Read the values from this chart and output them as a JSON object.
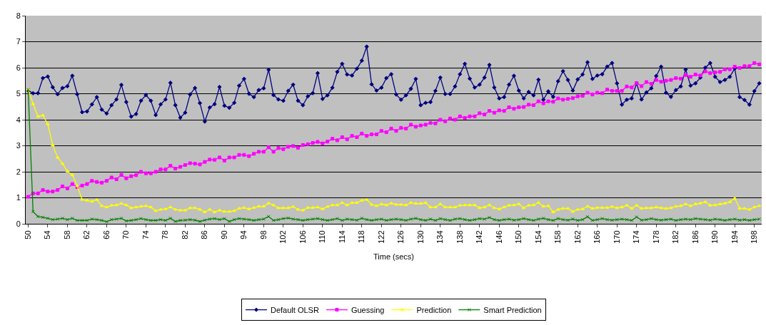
{
  "chart_data": {
    "type": "line",
    "xlabel": "Time (secs)",
    "ylim": [
      0,
      8
    ],
    "yticks": [
      0,
      1,
      2,
      3,
      4,
      5,
      6,
      7,
      8
    ],
    "grid": "y",
    "legend": "bottom",
    "categories": [
      "50",
      null,
      null,
      null,
      "54",
      null,
      null,
      null,
      "58",
      null,
      null,
      null,
      "62",
      null,
      null,
      null,
      "66",
      null,
      null,
      null,
      "70",
      null,
      null,
      null,
      "74",
      null,
      null,
      null,
      "78",
      null,
      null,
      null,
      "82",
      null,
      null,
      null,
      "86",
      null,
      null,
      null,
      "90",
      null,
      null,
      null,
      "94",
      null,
      null,
      null,
      "98",
      null,
      null,
      null,
      "102",
      null,
      null,
      null,
      "106",
      null,
      null,
      null,
      "110",
      null,
      null,
      null,
      "114",
      null,
      null,
      null,
      "118",
      null,
      null,
      null,
      "122",
      null,
      null,
      null,
      "126",
      null,
      null,
      null,
      "130",
      null,
      null,
      null,
      "134",
      null,
      null,
      null,
      "138",
      null,
      null,
      null,
      "142",
      null,
      null,
      null,
      "146",
      null,
      null,
      null,
      "150",
      null,
      null,
      null,
      "154",
      null,
      null,
      null,
      "158",
      null,
      null,
      null,
      "162",
      null,
      null,
      null,
      "166",
      null,
      null,
      null,
      "170",
      null,
      null,
      null,
      "174",
      null,
      null,
      null,
      "178",
      null,
      null,
      null,
      "182",
      null,
      null,
      null,
      "186",
      null,
      null,
      null,
      "190",
      null,
      null,
      null,
      "194",
      null,
      null,
      null,
      "198",
      null
    ],
    "series": [
      {
        "name": "Default OLSR",
        "color": "#000080",
        "marker": "diamond",
        "values": [
          5.12,
          5.02,
          5.02,
          5.6,
          5.66,
          5.25,
          4.98,
          5.22,
          5.29,
          5.69,
          4.98,
          4.29,
          4.32,
          4.59,
          4.87,
          4.39,
          4.24,
          4.56,
          4.78,
          5.34,
          4.68,
          4.12,
          4.22,
          4.73,
          4.95,
          4.73,
          4.18,
          4.59,
          4.78,
          5.42,
          4.56,
          4.08,
          4.27,
          4.97,
          5.22,
          4.64,
          3.93,
          4.47,
          4.6,
          5.26,
          4.54,
          4.46,
          4.65,
          5.31,
          5.57,
          5.0,
          4.87,
          5.14,
          5.21,
          5.92,
          4.95,
          4.78,
          4.73,
          5.11,
          5.35,
          4.73,
          4.56,
          4.9,
          5.02,
          5.79,
          4.8,
          4.94,
          5.23,
          5.84,
          6.15,
          5.74,
          5.7,
          5.96,
          6.27,
          6.81,
          5.36,
          5.12,
          5.23,
          5.6,
          5.75,
          4.97,
          4.77,
          4.94,
          5.19,
          5.57,
          4.56,
          4.65,
          4.68,
          5.11,
          5.62,
          4.99,
          4.99,
          5.28,
          5.75,
          6.15,
          5.58,
          5.24,
          5.35,
          5.62,
          6.11,
          5.24,
          4.82,
          4.87,
          5.35,
          5.69,
          5.12,
          4.82,
          5.07,
          4.94,
          5.54,
          4.77,
          5.09,
          4.88,
          5.48,
          5.87,
          5.53,
          5.12,
          5.55,
          5.74,
          6.21,
          5.57,
          5.7,
          5.75,
          6.04,
          6.18,
          5.4,
          4.58,
          4.77,
          4.82,
          5.4,
          4.78,
          5.05,
          5.21,
          5.68,
          6.04,
          5.04,
          4.88,
          5.14,
          5.28,
          5.93,
          5.31,
          5.4,
          5.62,
          6.0,
          6.18,
          5.65,
          5.45,
          5.53,
          5.65,
          5.97,
          4.87,
          4.76,
          4.58,
          5.1,
          5.4
        ]
      },
      {
        "name": "Guessing",
        "color": "#ff00ff",
        "marker": "square",
        "values": [
          1.04,
          1.17,
          1.17,
          1.3,
          1.24,
          1.24,
          1.3,
          1.44,
          1.36,
          1.53,
          1.41,
          1.47,
          1.53,
          1.65,
          1.61,
          1.58,
          1.65,
          1.78,
          1.71,
          1.88,
          1.75,
          1.83,
          1.87,
          2.0,
          1.94,
          1.94,
          2.0,
          2.09,
          2.09,
          2.23,
          2.12,
          2.19,
          2.26,
          2.33,
          2.31,
          2.28,
          2.38,
          2.47,
          2.46,
          2.55,
          2.43,
          2.55,
          2.55,
          2.65,
          2.65,
          2.6,
          2.69,
          2.77,
          2.77,
          2.94,
          2.77,
          2.91,
          2.87,
          2.96,
          2.99,
          2.92,
          3.03,
          3.06,
          3.11,
          3.15,
          3.09,
          3.16,
          3.27,
          3.21,
          3.33,
          3.25,
          3.38,
          3.33,
          3.47,
          3.38,
          3.44,
          3.44,
          3.57,
          3.52,
          3.66,
          3.57,
          3.69,
          3.66,
          3.81,
          3.73,
          3.78,
          3.81,
          3.88,
          3.86,
          4.0,
          3.94,
          4.05,
          4.0,
          4.13,
          4.07,
          4.13,
          4.13,
          4.25,
          4.2,
          4.34,
          4.27,
          4.36,
          4.34,
          4.48,
          4.42,
          4.48,
          4.49,
          4.58,
          4.56,
          4.71,
          4.63,
          4.71,
          4.69,
          4.82,
          4.77,
          4.8,
          4.83,
          4.9,
          4.92,
          5.04,
          4.97,
          5.04,
          5.02,
          5.16,
          5.11,
          5.11,
          5.11,
          5.28,
          5.24,
          5.41,
          5.29,
          5.45,
          5.38,
          5.53,
          5.46,
          5.5,
          5.53,
          5.6,
          5.58,
          5.72,
          5.65,
          5.74,
          5.7,
          5.86,
          5.79,
          5.82,
          5.84,
          5.94,
          5.94,
          6.04,
          5.99,
          6.06,
          6.06,
          6.18,
          6.13
        ]
      },
      {
        "name": "Prediction",
        "color": "#ffff00",
        "marker": "triangle",
        "values": [
          5.16,
          4.61,
          4.13,
          4.17,
          3.83,
          3.03,
          2.55,
          2.31,
          2.02,
          1.88,
          1.46,
          0.93,
          0.9,
          0.86,
          0.93,
          0.69,
          0.64,
          0.71,
          0.72,
          0.78,
          0.72,
          0.61,
          0.64,
          0.67,
          0.69,
          0.64,
          0.5,
          0.55,
          0.57,
          0.64,
          0.55,
          0.52,
          0.52,
          0.61,
          0.61,
          0.55,
          0.45,
          0.55,
          0.45,
          0.52,
          0.47,
          0.47,
          0.5,
          0.59,
          0.62,
          0.57,
          0.62,
          0.67,
          0.67,
          0.79,
          0.72,
          0.61,
          0.61,
          0.61,
          0.66,
          0.55,
          0.52,
          0.62,
          0.62,
          0.64,
          0.57,
          0.66,
          0.72,
          0.72,
          0.81,
          0.72,
          0.81,
          0.81,
          0.9,
          0.93,
          0.74,
          0.69,
          0.76,
          0.72,
          0.79,
          0.74,
          0.74,
          0.72,
          0.81,
          0.78,
          0.78,
          0.81,
          0.64,
          0.64,
          0.76,
          0.64,
          0.64,
          0.64,
          0.71,
          0.72,
          0.72,
          0.72,
          0.61,
          0.64,
          0.72,
          0.61,
          0.57,
          0.64,
          0.71,
          0.72,
          0.76,
          0.61,
          0.71,
          0.72,
          0.81,
          0.67,
          0.69,
          0.45,
          0.55,
          0.59,
          0.59,
          0.47,
          0.55,
          0.57,
          0.67,
          0.59,
          0.62,
          0.62,
          0.62,
          0.66,
          0.61,
          0.64,
          0.71,
          0.59,
          0.71,
          0.59,
          0.61,
          0.61,
          0.64,
          0.61,
          0.59,
          0.61,
          0.67,
          0.69,
          0.76,
          0.69,
          0.76,
          0.79,
          0.84,
          0.71,
          0.72,
          0.76,
          0.79,
          0.84,
          0.98,
          0.59,
          0.59,
          0.55,
          0.64,
          0.69
        ]
      },
      {
        "name": "Smart Prediction",
        "color": "#008000",
        "marker": "cross",
        "values": [
          5.16,
          0.47,
          0.28,
          0.25,
          0.21,
          0.16,
          0.18,
          0.21,
          0.16,
          0.21,
          0.13,
          0.13,
          0.13,
          0.18,
          0.16,
          0.13,
          0.08,
          0.16,
          0.18,
          0.21,
          0.11,
          0.13,
          0.16,
          0.2,
          0.16,
          0.13,
          0.13,
          0.16,
          0.13,
          0.21,
          0.09,
          0.13,
          0.14,
          0.16,
          0.14,
          0.09,
          0.14,
          0.18,
          0.2,
          0.16,
          0.2,
          0.09,
          0.16,
          0.2,
          0.18,
          0.16,
          0.13,
          0.16,
          0.18,
          0.28,
          0.13,
          0.16,
          0.2,
          0.22,
          0.18,
          0.16,
          0.13,
          0.16,
          0.18,
          0.2,
          0.16,
          0.13,
          0.16,
          0.2,
          0.13,
          0.18,
          0.16,
          0.14,
          0.21,
          0.16,
          0.13,
          0.16,
          0.18,
          0.13,
          0.16,
          0.18,
          0.16,
          0.13,
          0.18,
          0.21,
          0.16,
          0.13,
          0.18,
          0.13,
          0.2,
          0.16,
          0.13,
          0.18,
          0.2,
          0.16,
          0.13,
          0.16,
          0.2,
          0.18,
          0.24,
          0.16,
          0.13,
          0.16,
          0.18,
          0.14,
          0.16,
          0.2,
          0.16,
          0.13,
          0.18,
          0.21,
          0.16,
          0.13,
          0.2,
          0.16,
          0.14,
          0.18,
          0.13,
          0.16,
          0.27,
          0.13,
          0.16,
          0.2,
          0.16,
          0.14,
          0.16,
          0.18,
          0.16,
          0.13,
          0.26,
          0.14,
          0.16,
          0.2,
          0.16,
          0.14,
          0.16,
          0.18,
          0.13,
          0.16,
          0.18,
          0.16,
          0.2,
          0.18,
          0.16,
          0.14,
          0.18,
          0.16,
          0.13,
          0.16,
          0.18,
          0.14,
          0.16,
          0.13,
          0.16,
          0.18
        ]
      }
    ]
  }
}
